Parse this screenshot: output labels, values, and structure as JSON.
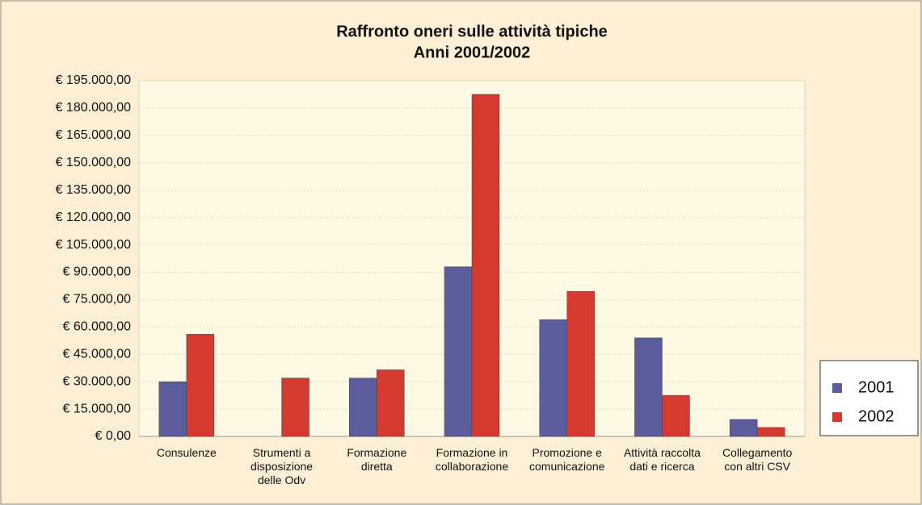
{
  "chart_data": {
    "type": "bar",
    "title": "Raffronto oneri sulle attività tipiche",
    "subtitle": "Anni 2001/2002",
    "categories": [
      "Consulenze",
      "Strumenti a\ndisposizione\ndelle Odv",
      "Formazione\ndiretta",
      "Formazione in\ncollaborazione",
      "Promozione e\ncomunicazione",
      "Attività raccolta\ndati e ricerca",
      "Collegamento\ncon altri CSV"
    ],
    "series": [
      {
        "name": "2001",
        "color": "#5b5c9c",
        "values": [
          30000,
          null,
          32000,
          93000,
          64000,
          54000,
          9300
        ]
      },
      {
        "name": "2002",
        "color": "#d53a31",
        "values": [
          56000,
          32000,
          36500,
          187500,
          79500,
          22500,
          4900
        ]
      }
    ],
    "ylim": [
      0,
      195000
    ],
    "yticks": [
      {
        "value": 0,
        "label": "€ 0,00"
      },
      {
        "value": 15000,
        "label": "€ 15.000,00"
      },
      {
        "value": 30000,
        "label": "€ 30.000,00"
      },
      {
        "value": 45000,
        "label": "€ 45.000,00"
      },
      {
        "value": 60000,
        "label": "€ 60.000,00"
      },
      {
        "value": 75000,
        "label": "€ 75.000,00"
      },
      {
        "value": 90000,
        "label": "€ 90.000,00"
      },
      {
        "value": 105000,
        "label": "€ 105.000,00"
      },
      {
        "value": 120000,
        "label": "€ 120.000,00"
      },
      {
        "value": 135000,
        "label": "€ 135.000,00"
      },
      {
        "value": 150000,
        "label": "€ 150.000,00"
      },
      {
        "value": 165000,
        "label": "€ 165.000,00"
      },
      {
        "value": 180000,
        "label": "€ 180.000,00"
      },
      {
        "value": 195000,
        "label": "€ 195.000,00"
      }
    ],
    "grid": true,
    "legend": "right"
  }
}
